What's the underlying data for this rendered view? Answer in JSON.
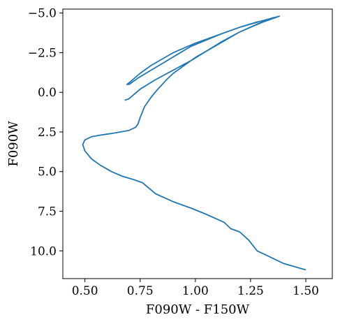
{
  "chart_data": {
    "type": "line",
    "title": "",
    "xlabel": "F090W - F150W",
    "ylabel": "F090W",
    "xlim": [
      0.4,
      1.62
    ],
    "ylim": [
      11.75,
      -5.25
    ],
    "y_inverted": true,
    "grid": false,
    "legend": "none",
    "xticks": [
      0.5,
      0.75,
      1.0,
      1.25,
      1.5
    ],
    "xtick_labels": [
      "0.50",
      "0.75",
      "1.00",
      "1.25",
      "1.50"
    ],
    "yticks": [
      -5.0,
      -2.5,
      0.0,
      2.5,
      5.0,
      7.5,
      10.0
    ],
    "ytick_labels": [
      "−5.0",
      "−2.5",
      "0.0",
      "2.5",
      "5.0",
      "7.5",
      "10.0"
    ],
    "series": [
      {
        "color": "#1f77b4",
        "x": [
          1.5,
          1.4,
          1.34,
          1.28,
          1.24,
          1.2,
          1.16,
          1.13,
          1.05,
          0.98,
          0.9,
          0.82,
          0.76,
          0.72,
          0.67,
          0.62,
          0.57,
          0.53,
          0.5,
          0.49,
          0.5,
          0.53,
          0.57,
          0.62,
          0.7,
          0.73,
          0.74,
          0.75,
          0.77,
          0.8,
          0.83,
          0.85,
          0.87,
          0.9,
          0.95,
          1.0,
          1.05,
          1.1,
          1.15,
          1.2,
          1.25,
          1.3,
          1.34,
          1.37,
          1.38,
          1.3,
          1.2,
          1.1,
          1.0,
          0.9,
          0.8,
          0.75,
          0.7,
          0.69,
          0.7,
          0.74,
          0.8,
          0.86,
          0.92,
          0.98,
          1.05,
          1.12,
          1.2,
          1.27,
          1.33,
          1.37,
          1.35,
          1.28,
          1.2,
          1.12,
          1.05,
          0.98,
          0.9,
          0.82,
          0.75,
          0.7,
          0.68
        ],
        "y": [
          11.2,
          10.8,
          10.4,
          10.0,
          9.3,
          8.8,
          8.6,
          8.2,
          7.7,
          7.3,
          6.9,
          6.4,
          5.7,
          5.5,
          5.3,
          5.0,
          4.6,
          4.2,
          3.7,
          3.3,
          3.0,
          2.8,
          2.7,
          2.6,
          2.4,
          2.2,
          2.0,
          1.6,
          0.9,
          0.3,
          -0.2,
          -0.5,
          -0.8,
          -1.2,
          -1.7,
          -2.2,
          -2.6,
          -3.0,
          -3.4,
          -3.8,
          -4.1,
          -4.4,
          -4.6,
          -4.75,
          -4.8,
          -4.5,
          -4.1,
          -3.6,
          -3.1,
          -2.5,
          -1.7,
          -1.2,
          -0.6,
          -0.5,
          -0.5,
          -0.9,
          -1.4,
          -1.9,
          -2.4,
          -2.9,
          -3.3,
          -3.7,
          -4.1,
          -4.4,
          -4.6,
          -4.75,
          -4.7,
          -4.3,
          -3.8,
          -3.2,
          -2.6,
          -2.0,
          -1.4,
          -0.8,
          -0.2,
          0.4,
          0.5
        ]
      }
    ]
  }
}
